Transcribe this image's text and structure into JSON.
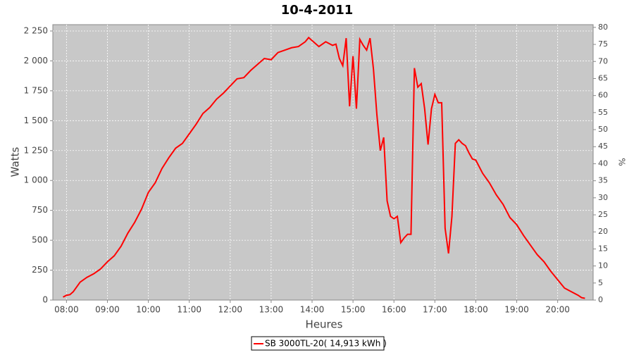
{
  "chart_data": {
    "type": "line",
    "title": "10-4-2011",
    "x_label": "Heures",
    "y_label": "Watts",
    "y2_label": "%",
    "x": [
      "07:55",
      "08:00",
      "08:05",
      "08:10",
      "08:15",
      "08:20",
      "08:30",
      "08:40",
      "08:50",
      "09:00",
      "09:10",
      "09:20",
      "09:30",
      "09:40",
      "09:50",
      "10:00",
      "10:10",
      "10:20",
      "10:30",
      "10:40",
      "10:50",
      "11:00",
      "11:10",
      "11:20",
      "11:30",
      "11:40",
      "11:50",
      "12:00",
      "12:10",
      "12:20",
      "12:30",
      "12:40",
      "12:50",
      "13:00",
      "13:10",
      "13:20",
      "13:30",
      "13:40",
      "13:50",
      "13:55",
      "14:00",
      "14:10",
      "14:20",
      "14:30",
      "14:35",
      "14:40",
      "14:45",
      "14:50",
      "14:55",
      "15:00",
      "15:05",
      "15:10",
      "15:15",
      "15:20",
      "15:25",
      "15:30",
      "15:35",
      "15:40",
      "15:45",
      "15:50",
      "15:55",
      "16:00",
      "16:05",
      "16:10",
      "16:15",
      "16:20",
      "16:25",
      "16:30",
      "16:35",
      "16:40",
      "16:45",
      "16:50",
      "16:55",
      "17:00",
      "17:05",
      "17:10",
      "17:15",
      "17:20",
      "17:25",
      "17:30",
      "17:35",
      "17:40",
      "17:45",
      "17:50",
      "17:55",
      "18:00",
      "18:10",
      "18:20",
      "18:30",
      "18:40",
      "18:50",
      "19:00",
      "19:10",
      "19:20",
      "19:30",
      "19:40",
      "19:50",
      "20:00",
      "20:10",
      "20:20",
      "20:30",
      "20:35",
      "20:40"
    ],
    "series": [
      {
        "name": "SB 3000TL-20( 14,913 kWh  )",
        "color": "#ff0000",
        "values": [
          25,
          40,
          45,
          70,
          110,
          150,
          190,
          220,
          260,
          320,
          370,
          450,
          560,
          650,
          760,
          900,
          980,
          1100,
          1190,
          1270,
          1310,
          1390,
          1470,
          1560,
          1610,
          1680,
          1730,
          1790,
          1850,
          1860,
          1920,
          1970,
          2020,
          2010,
          2070,
          2090,
          2110,
          2120,
          2160,
          2195,
          2170,
          2120,
          2160,
          2130,
          2140,
          2020,
          1960,
          2190,
          1620,
          2040,
          1600,
          2180,
          2130,
          2090,
          2190,
          1930,
          1550,
          1250,
          1360,
          830,
          700,
          680,
          700,
          480,
          520,
          550,
          550,
          1940,
          1780,
          1810,
          1600,
          1300,
          1600,
          1720,
          1650,
          1650,
          600,
          390,
          700,
          1310,
          1340,
          1310,
          1290,
          1230,
          1180,
          1170,
          1060,
          980,
          880,
          800,
          690,
          630,
          540,
          460,
          380,
          320,
          240,
          170,
          100,
          70,
          40,
          20,
          15
        ]
      }
    ],
    "xlim": [
      "07:40",
      "20:52"
    ],
    "xticks": [
      "08:00",
      "09:00",
      "10:00",
      "11:00",
      "12:00",
      "13:00",
      "14:00",
      "15:00",
      "16:00",
      "17:00",
      "18:00",
      "19:00",
      "20:00"
    ],
    "ylim": [
      0,
      2303
    ],
    "yticks": [
      0,
      250,
      500,
      750,
      {
        "value": 1000,
        "label": "1 000"
      },
      {
        "value": 1250,
        "label": "1 250"
      },
      {
        "value": 1500,
        "label": "1 500"
      },
      {
        "value": 1750,
        "label": "1 750"
      },
      {
        "value": 2000,
        "label": "2 000"
      },
      {
        "value": 2250,
        "label": "2 250"
      }
    ],
    "y2lim": [
      0,
      80.8
    ],
    "y2ticks": [
      0,
      5,
      10,
      15,
      20,
      25,
      30,
      35,
      40,
      45,
      50,
      55,
      60,
      65,
      70,
      75,
      80
    ],
    "grid": true
  }
}
